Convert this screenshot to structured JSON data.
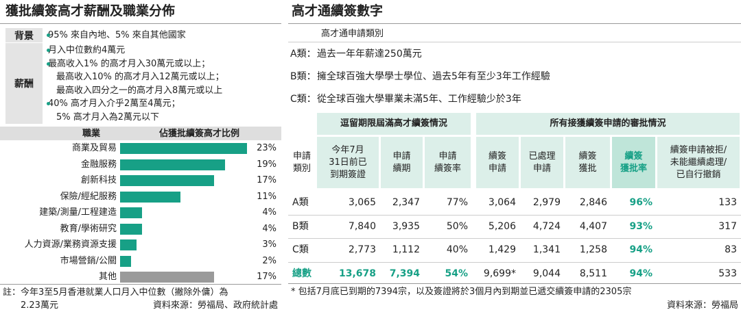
{
  "left": {
    "title": "獲批續簽高才薪酬及職業分佈",
    "background": {
      "label": "背景",
      "items": [
        [
          "95% 來自內地、5% 來自其他國家"
        ]
      ]
    },
    "salary": {
      "label": "薪酬",
      "items": [
        [
          "月入中位數約4萬元"
        ],
        [
          "最高收入1% 的高才月入30萬元或以上；",
          "最高收入10% 的高才月入12萬元或以上；",
          "最高收入四分之一的高才月入8萬元或以上"
        ],
        [
          "40% 高才月入介乎2萬至4萬元；",
          "5% 高才月入為2萬元以下"
        ]
      ]
    },
    "note": [
      "註：今年3至5月香港就業人口月入中位數（撇除外傭）為",
      "2.23萬元"
    ],
    "source": "資料來源：勞福局、政府統計處"
  },
  "chart_data": {
    "type": "bar",
    "category_header": "職業",
    "value_header": "佔獲批續簽高才比例",
    "categories": [
      "商業及貿易",
      "金融服務",
      "創新科技",
      "保險/經紀服務",
      "建築/測量/工程建造",
      "教育/學術研究",
      "人力資源/業務資源支援",
      "市場營銷/公關",
      "其他"
    ],
    "values": [
      23,
      19,
      17,
      11,
      4,
      4,
      3,
      2,
      17
    ],
    "value_labels": [
      "23%",
      "19%",
      "17%",
      "11%",
      "4%",
      "4%",
      "3%",
      "2%",
      "17%"
    ],
    "colors": [
      "#17a086",
      "#17a086",
      "#17a086",
      "#17a086",
      "#17a086",
      "#17a086",
      "#17a086",
      "#17a086",
      "#9a9a9a"
    ]
  },
  "right": {
    "title": "高才通續簽數字",
    "categories_heading": "高才通申請類別",
    "categories": [
      {
        "label": "A類：",
        "text": "過去一年年薪達250萬元"
      },
      {
        "label": "B類：",
        "text": "擁全球百強大學學士學位、過去5年有至少3年工作經驗"
      },
      {
        "label": "C類：",
        "text": "從全球百強大學畢業未滿5年、工作經驗少於3年"
      }
    ],
    "table": {
      "groups": [
        "逗留期限屆滿高才續簽情況",
        "所有接獲續簽申請的審批情況"
      ],
      "columns": [
        [
          "申請",
          "類別"
        ],
        [
          "今年7月",
          "31日前已",
          "到期簽證"
        ],
        [
          "申請",
          "續期"
        ],
        [
          "申請",
          "續簽率"
        ],
        [
          "續簽",
          "申請"
        ],
        [
          "已處理",
          "申請"
        ],
        [
          "續簽",
          "獲批"
        ],
        [
          "續簽",
          "獲批率"
        ],
        [
          "續簽申請被拒/",
          "未能繼續處理/",
          "已自行撤銷"
        ]
      ],
      "rows": [
        [
          "A類",
          "3,065",
          "2,347",
          "77%",
          "3,064",
          "2,979",
          "2,846",
          "96%",
          "133"
        ],
        [
          "B類",
          "7,840",
          "3,935",
          "50%",
          "5,206",
          "4,724",
          "4,407",
          "93%",
          "317"
        ],
        [
          "C類",
          "2,773",
          "1,112",
          "40%",
          "1,429",
          "1,341",
          "1,258",
          "94%",
          "83"
        ],
        [
          "總數",
          "13,678",
          "7,394",
          "54%",
          "9,699*",
          "9,044",
          "8,511",
          "94%",
          "533"
        ]
      ]
    },
    "footnote": "* 包括7月底已到期的7394宗，以及簽證將於3個月內到期並已遞交續簽申請的2305宗",
    "source": "資料來源：勞福局"
  }
}
